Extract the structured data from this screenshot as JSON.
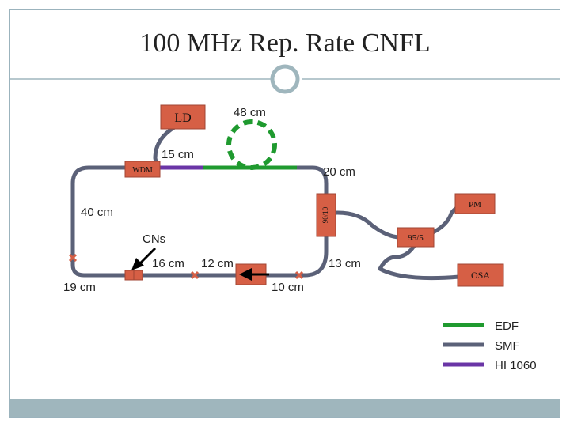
{
  "title": "100 MHz Rep. Rate CNFL",
  "components": {
    "ld": "LD",
    "wdm": "WDM",
    "pm": "PM",
    "coupler_90_10": "90/10",
    "coupler_95_5": "95/5",
    "osa": "OSA"
  },
  "labels": {
    "len_48": "48 cm",
    "len_15": "15 cm",
    "len_20": "20 cm",
    "len_40": "40 cm",
    "cns": "CNs",
    "len_16": "16 cm",
    "len_12": "12 cm",
    "len_13": "13 cm",
    "len_19": "19 cm",
    "len_10": "10 cm"
  },
  "legend": [
    {
      "label": "EDF",
      "color": "#1f9a2f"
    },
    {
      "label": "SMF",
      "color": "#5b6178"
    },
    {
      "label": "HI 1060",
      "color": "#6a35a6"
    }
  ],
  "colors": {
    "edf": "#1f9a2f",
    "smf": "#5b6178",
    "hi1060": "#6a35a6",
    "component_fill": "#d65f45",
    "frame_accent": "#9fb6bd"
  }
}
